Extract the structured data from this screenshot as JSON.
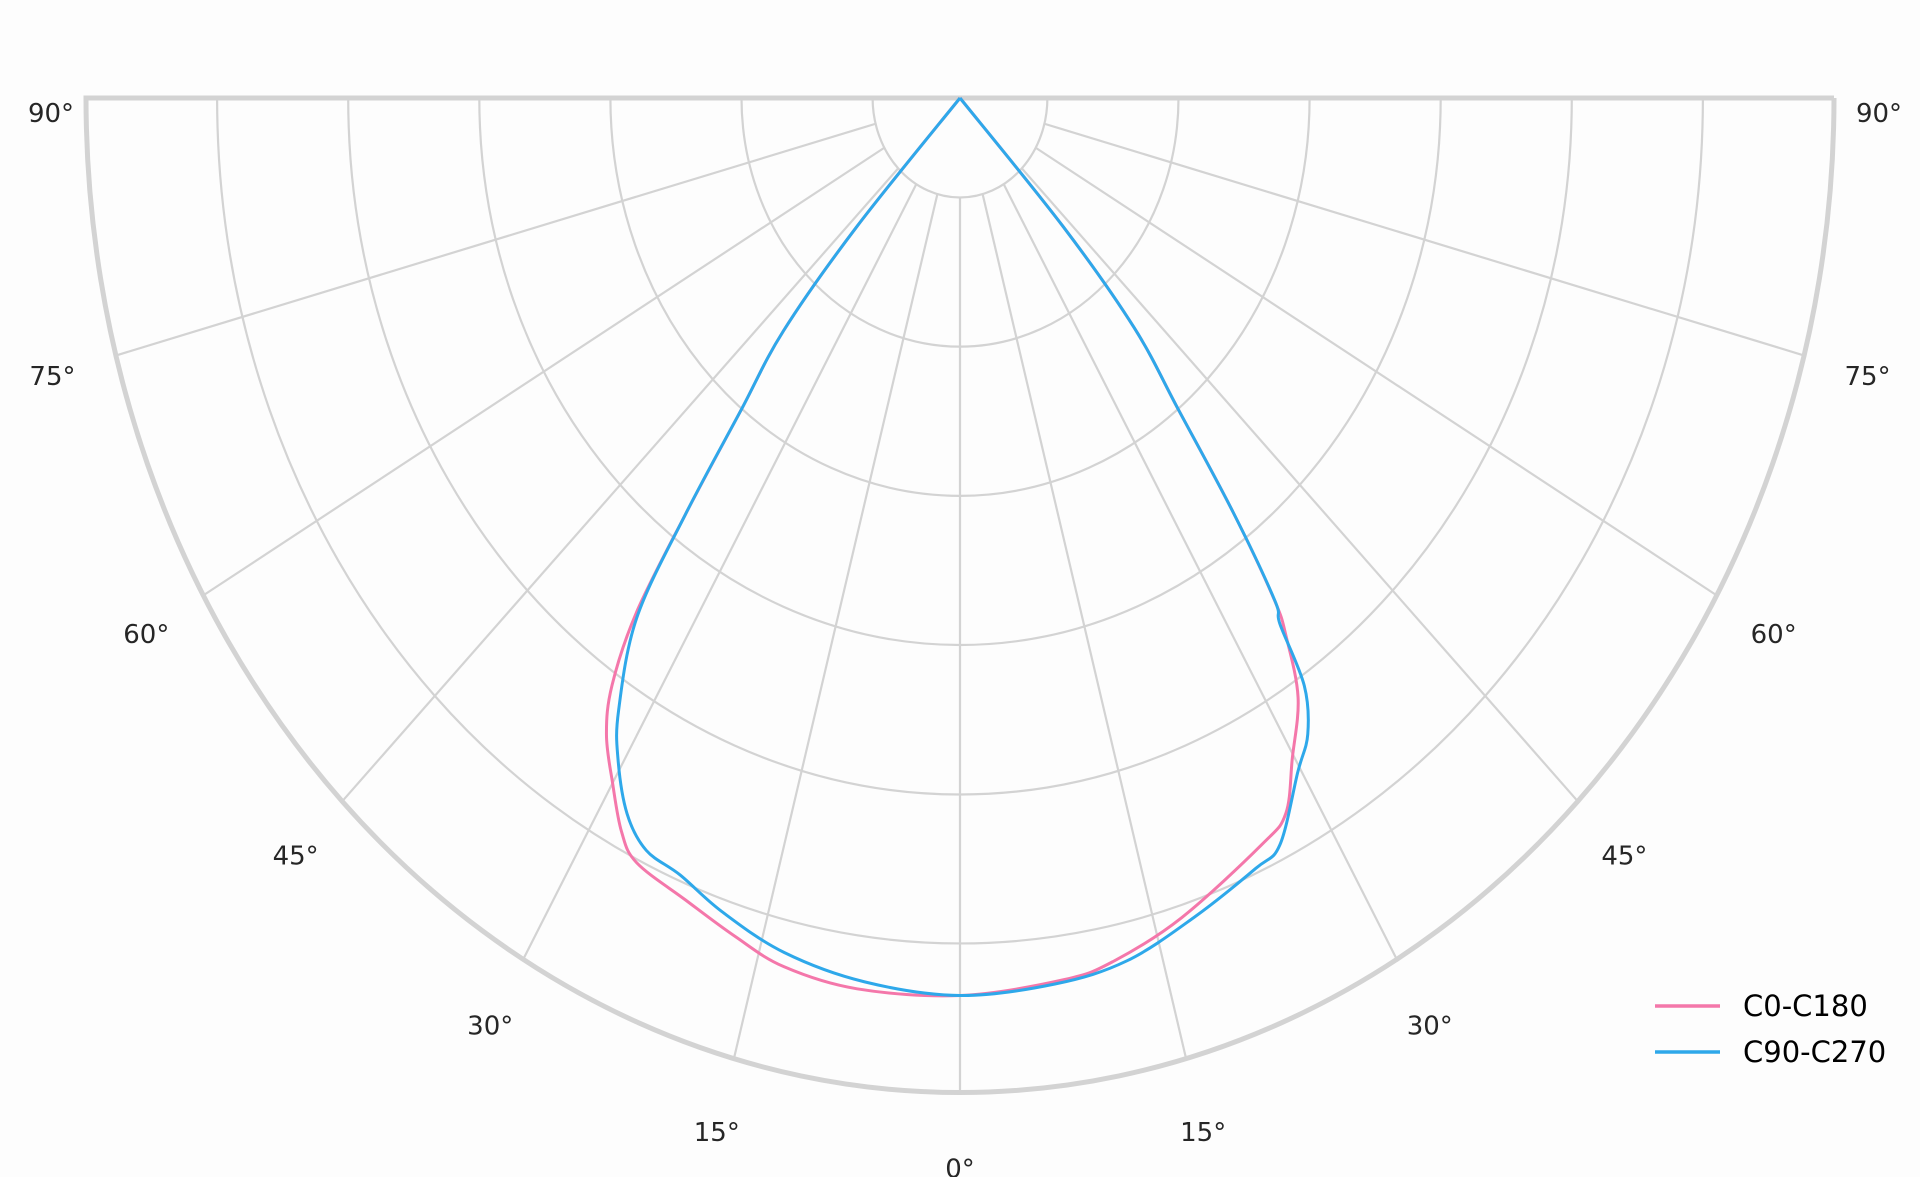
{
  "chart_data": {
    "type": "polar-line",
    "title": "",
    "angle_ticks": [
      {
        "angle": -90,
        "label": "90°"
      },
      {
        "angle": -75,
        "label": "75°"
      },
      {
        "angle": -60,
        "label": "60°"
      },
      {
        "angle": -45,
        "label": "45°"
      },
      {
        "angle": -30,
        "label": "30°"
      },
      {
        "angle": -15,
        "label": "15°"
      },
      {
        "angle": 0,
        "label": "0°"
      },
      {
        "angle": 15,
        "label": "15°"
      },
      {
        "angle": 30,
        "label": "30°"
      },
      {
        "angle": 45,
        "label": "45°"
      },
      {
        "angle": 60,
        "label": "60°"
      },
      {
        "angle": 75,
        "label": "75°"
      },
      {
        "angle": 90,
        "label": "90°"
      }
    ],
    "angle_range": [
      -90,
      90
    ],
    "radial_range": [
      0,
      1
    ],
    "radial_tick_labels": false,
    "grid": true,
    "legend_position": "bottom-right",
    "series": [
      {
        "name": "C0-C180",
        "color": "#f477aa",
        "points": [
          [
            -45,
            0
          ],
          [
            -42.4,
            0.175
          ],
          [
            -40.8,
            0.309
          ],
          [
            -38.6,
            0.402
          ],
          [
            -36.9,
            0.523
          ],
          [
            -35.6,
            0.636
          ],
          [
            -34,
            0.712
          ],
          [
            -32.3,
            0.757
          ],
          [
            -30,
            0.795
          ],
          [
            -27.7,
            0.833
          ],
          [
            -25.7,
            0.853
          ],
          [
            -21.3,
            0.865
          ],
          [
            -17,
            0.881
          ],
          [
            -13,
            0.896
          ],
          [
            -7.5,
            0.903
          ],
          [
            0,
            0.902
          ],
          [
            7.7,
            0.894
          ],
          [
            11.5,
            0.885
          ],
          [
            17.1,
            0.862
          ],
          [
            24.7,
            0.826
          ],
          [
            27.4,
            0.81
          ],
          [
            29.8,
            0.765
          ],
          [
            32.7,
            0.716
          ],
          [
            34.6,
            0.657
          ],
          [
            35.5,
            0.619
          ],
          [
            36.9,
            0.52
          ],
          [
            38.6,
            0.4
          ],
          [
            40.8,
            0.305
          ],
          [
            42.4,
            0.175
          ],
          [
            45,
            0
          ]
        ]
      },
      {
        "name": "C90-C270",
        "color": "#2ea8ea",
        "points": [
          [
            -45,
            0
          ],
          [
            -42.4,
            0.175
          ],
          [
            -40.8,
            0.309
          ],
          [
            -38.6,
            0.402
          ],
          [
            -36.9,
            0.523
          ],
          [
            -35.3,
            0.64
          ],
          [
            -32.4,
            0.729
          ],
          [
            -30.5,
            0.771
          ],
          [
            -27.9,
            0.814
          ],
          [
            -25.4,
            0.837
          ],
          [
            -22.3,
            0.844
          ],
          [
            -18.4,
            0.862
          ],
          [
            -13.2,
            0.882
          ],
          [
            -7,
            0.895
          ],
          [
            0,
            0.902
          ],
          [
            7,
            0.897
          ],
          [
            12.4,
            0.888
          ],
          [
            18,
            0.866
          ],
          [
            23.6,
            0.845
          ],
          [
            26,
            0.835
          ],
          [
            29.7,
            0.78
          ],
          [
            31.9,
            0.753
          ],
          [
            33.7,
            0.71
          ],
          [
            34.7,
            0.643
          ],
          [
            35.5,
            0.62
          ],
          [
            36.9,
            0.52
          ],
          [
            38.6,
            0.4
          ],
          [
            40.8,
            0.305
          ],
          [
            42.4,
            0.175
          ],
          [
            45,
            0
          ]
        ]
      }
    ]
  }
}
